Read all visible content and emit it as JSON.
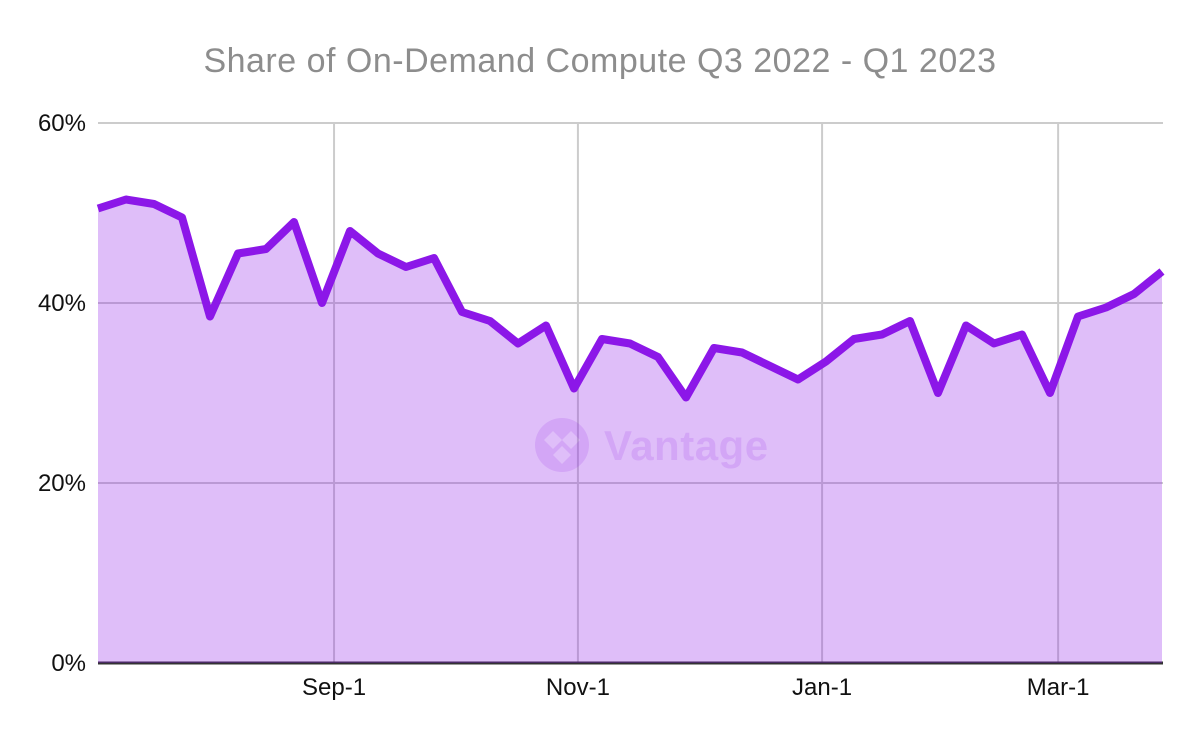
{
  "chart": {
    "title": "Share of On-Demand Compute Q3 2022 - Q1 2023",
    "watermark_text": "Vantage"
  },
  "chart_data": {
    "type": "area",
    "title": "Share of On-Demand Compute Q3 2022 - Q1 2023",
    "unit": "percent",
    "xlabel": "",
    "ylabel": "",
    "ylim": [
      0,
      60
    ],
    "grid": true,
    "legend": "none",
    "x_dates": [
      "2022-07-04",
      "2022-07-11",
      "2022-07-18",
      "2022-07-25",
      "2022-08-01",
      "2022-08-08",
      "2022-08-15",
      "2022-08-22",
      "2022-08-29",
      "2022-09-05",
      "2022-09-12",
      "2022-09-19",
      "2022-09-26",
      "2022-10-03",
      "2022-10-10",
      "2022-10-17",
      "2022-10-24",
      "2022-10-31",
      "2022-11-07",
      "2022-11-14",
      "2022-11-21",
      "2022-11-28",
      "2022-12-05",
      "2022-12-12",
      "2022-12-19",
      "2022-12-26",
      "2023-01-02",
      "2023-01-09",
      "2023-01-16",
      "2023-01-23",
      "2023-01-30",
      "2023-02-06",
      "2023-02-13",
      "2023-02-20",
      "2023-02-27",
      "2023-03-06",
      "2023-03-13",
      "2023-03-20",
      "2023-03-27"
    ],
    "series": [
      {
        "name": "Share of On-Demand Compute",
        "values": [
          50.5,
          51.5,
          51,
          49.5,
          38.5,
          45.5,
          46,
          49,
          40,
          48,
          45.5,
          44,
          45,
          39,
          38,
          35.5,
          37.5,
          30.5,
          36,
          35.5,
          34,
          29.5,
          35,
          34.5,
          33,
          31.5,
          33.5,
          36,
          36.5,
          38,
          30,
          37.5,
          35.5,
          36.5,
          30,
          38.5,
          39.5,
          41,
          43.5
        ]
      }
    ],
    "y_ticks": [
      {
        "label": "0%",
        "value": 0
      },
      {
        "label": "20%",
        "value": 20
      },
      {
        "label": "40%",
        "value": 40
      },
      {
        "label": "60%",
        "value": 60
      }
    ],
    "x_ticks": [
      {
        "label": "Sep-1",
        "index": 8.43
      },
      {
        "label": "Nov-1",
        "index": 17.14
      },
      {
        "label": "Jan-1",
        "index": 25.86
      },
      {
        "label": "Mar-1",
        "index": 34.29
      }
    ],
    "colors": {
      "line": "#8C17E8",
      "fill": "rgba(140,23,232,0.28)",
      "gridline": "#cccccc",
      "axis_line": "#333333",
      "tick_label": "#111111",
      "title": "#8d8d8d",
      "watermark": "rgba(140,23,232,0.14)"
    }
  }
}
